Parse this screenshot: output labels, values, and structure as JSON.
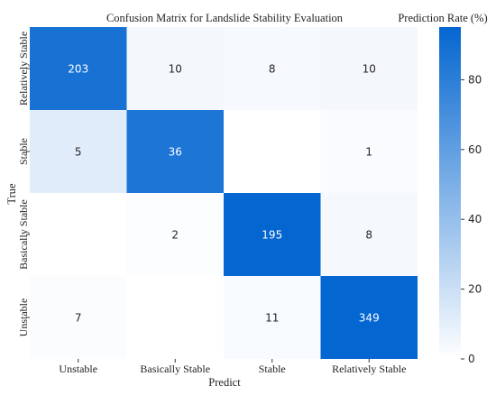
{
  "chart_data": {
    "type": "heatmap",
    "title": "Confusion Matrix for Landslide Stability Evaluation",
    "xlabel": "Predict",
    "ylabel": "True",
    "x_categories": [
      "Unstable",
      "Basically Stable",
      "Stable",
      "Relatively Stable"
    ],
    "y_categories": [
      "Relatively Stable",
      "Stable",
      "Basically Stable",
      "Unstable"
    ],
    "cell_labels": [
      [
        "203",
        "10",
        "8",
        "10"
      ],
      [
        "5",
        "36",
        "",
        "1"
      ],
      [
        "",
        "2",
        "195",
        "8"
      ],
      [
        "7",
        "",
        "11",
        "349"
      ]
    ],
    "prediction_rate_percent": [
      [
        87.9,
        4.3,
        3.5,
        4.3
      ],
      [
        11.9,
        85.7,
        0,
        2.4
      ],
      [
        0,
        1.0,
        95.1,
        3.9
      ],
      [
        1.9,
        0,
        3.0,
        95.1
      ]
    ],
    "colorbar": {
      "label": "Prediction Rate (%)",
      "min": 0,
      "max": 95.1,
      "ticks": [
        0,
        20,
        40,
        60,
        80
      ]
    },
    "colors": {
      "low": "#ffffff",
      "high": "#0466d0"
    }
  }
}
